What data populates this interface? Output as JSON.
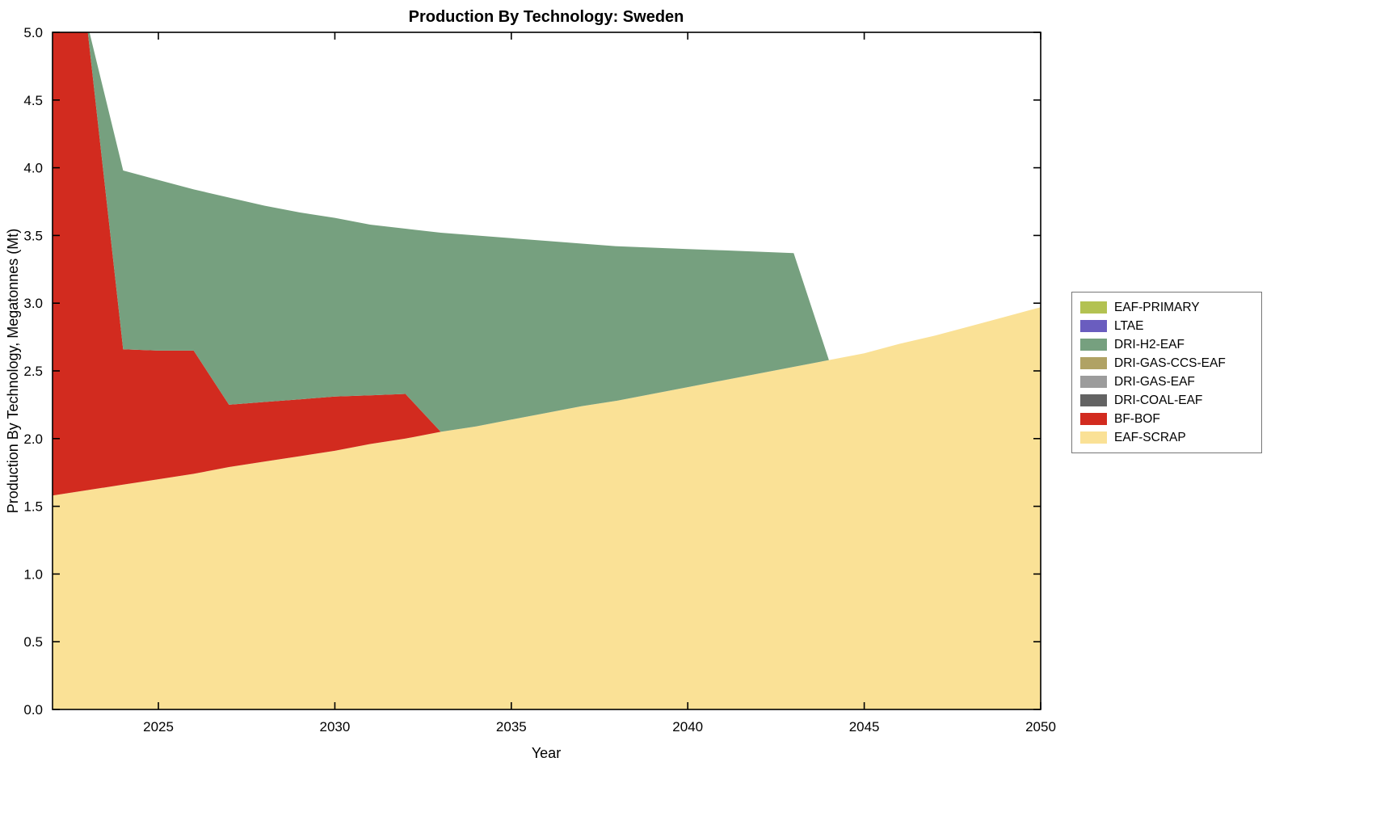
{
  "chart_data": {
    "type": "area",
    "stacked": true,
    "title": "Production By Technology: Sweden",
    "xlabel": "Year",
    "ylabel": "Production By Technology, Megatonnes (Mt)",
    "xlim": [
      2022,
      2050
    ],
    "ylim": [
      0,
      5
    ],
    "grid": false,
    "legend_position": "right-outside",
    "xticks": [
      2025,
      2030,
      2035,
      2040,
      2045,
      2050
    ],
    "yticks": [
      0,
      0.5,
      1,
      1.5,
      2,
      2.5,
      3,
      3.5,
      4,
      4.5,
      5
    ],
    "ytick_labels": [
      "0.0",
      "0.5",
      "1.0",
      "1.5",
      "2.0",
      "2.5",
      "3.0",
      "3.5",
      "4.0",
      "4.5",
      "5.0"
    ],
    "x": [
      2022,
      2023,
      2024,
      2025,
      2026,
      2027,
      2028,
      2029,
      2030,
      2031,
      2032,
      2033,
      2034,
      2035,
      2036,
      2037,
      2038,
      2039,
      2040,
      2041,
      2042,
      2043,
      2044,
      2045,
      2046,
      2047,
      2048,
      2049,
      2050
    ],
    "series": [
      {
        "name": "EAF-SCRAP",
        "color": "#fae196",
        "values": [
          1.58,
          1.62,
          1.66,
          1.7,
          1.74,
          1.79,
          1.83,
          1.87,
          1.91,
          1.96,
          2.0,
          2.05,
          2.09,
          2.14,
          2.19,
          2.24,
          2.28,
          2.33,
          2.38,
          2.43,
          2.48,
          2.53,
          2.58,
          2.63,
          2.7,
          2.76,
          2.83,
          2.9,
          2.97
        ]
      },
      {
        "name": "BF-BOF",
        "color": "#d22b1f",
        "values": [
          3.47,
          3.38,
          1.0,
          0.95,
          0.91,
          0.46,
          0.44,
          0.42,
          0.4,
          0.36,
          0.33,
          0,
          0,
          0,
          0,
          0,
          0,
          0,
          0,
          0,
          0,
          0,
          0,
          0,
          0,
          0,
          0,
          0,
          0
        ]
      },
      {
        "name": "DRI-COAL-EAF",
        "color": "#636363",
        "values": [
          0,
          0,
          0,
          0,
          0,
          0,
          0,
          0,
          0,
          0,
          0,
          0,
          0,
          0,
          0,
          0,
          0,
          0,
          0,
          0,
          0,
          0,
          0,
          0,
          0,
          0,
          0,
          0,
          0
        ]
      },
      {
        "name": "DRI-GAS-EAF",
        "color": "#9c9c9c",
        "values": [
          0,
          0,
          0,
          0,
          0,
          0,
          0,
          0,
          0,
          0,
          0,
          0,
          0,
          0,
          0,
          0,
          0,
          0,
          0,
          0,
          0,
          0,
          0,
          0,
          0,
          0,
          0,
          0,
          0
        ]
      },
      {
        "name": "DRI-GAS-CCS-EAF",
        "color": "#b0a264",
        "values": [
          0,
          0,
          0,
          0,
          0,
          0,
          0,
          0,
          0,
          0,
          0,
          0,
          0,
          0,
          0,
          0,
          0,
          0,
          0,
          0,
          0,
          0,
          0,
          0,
          0,
          0,
          0,
          0,
          0
        ]
      },
      {
        "name": "DRI-H2-EAF",
        "color": "#76a07f",
        "values": [
          0,
          0.05,
          1.32,
          1.26,
          1.19,
          1.53,
          1.45,
          1.38,
          1.32,
          1.26,
          1.22,
          1.47,
          1.41,
          1.34,
          1.27,
          1.2,
          1.14,
          1.08,
          1.02,
          0.96,
          0.9,
          0.84,
          0,
          0,
          0,
          0,
          0,
          0,
          0
        ]
      },
      {
        "name": "LTAE",
        "color": "#6a5dbf",
        "values": [
          0,
          0,
          0,
          0,
          0,
          0,
          0,
          0,
          0,
          0,
          0,
          0,
          0,
          0,
          0,
          0,
          0,
          0,
          0,
          0,
          0,
          0,
          0,
          0,
          0,
          0,
          0,
          0,
          0
        ]
      },
      {
        "name": "EAF-PRIMARY",
        "color": "#b3c252",
        "values": [
          0,
          0,
          0,
          0,
          0,
          0,
          0,
          0,
          0,
          0,
          0,
          0,
          0,
          0,
          0,
          0,
          0,
          0,
          0,
          0,
          0,
          0,
          0,
          0,
          0,
          0,
          0,
          0,
          0
        ]
      }
    ],
    "legend_entries_top_to_bottom": [
      "EAF-PRIMARY",
      "LTAE",
      "DRI-H2-EAF",
      "DRI-GAS-CCS-EAF",
      "DRI-GAS-EAF",
      "DRI-COAL-EAF",
      "BF-BOF",
      "EAF-SCRAP"
    ]
  }
}
